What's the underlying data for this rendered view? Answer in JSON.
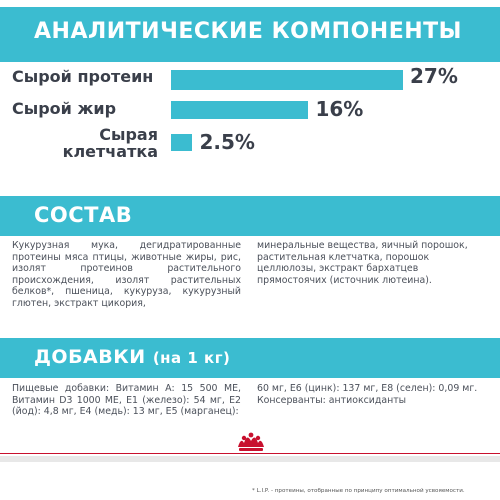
{
  "analytics": {
    "title": "АНАЛИТИЧЕСКИЕ КОМПОНЕНТЫ",
    "rows": [
      {
        "label_lines": [
          "Сырой протеин"
        ],
        "value": "27%",
        "percent": 27
      },
      {
        "label_lines": [
          "Сырой жир"
        ],
        "value": "16%",
        "percent": 16
      },
      {
        "label_lines": [
          "Сырая",
          "клетчатка"
        ],
        "value": "2.5%",
        "percent": 2.5
      }
    ]
  },
  "composition": {
    "title": "СОСТАВ",
    "col1": "Кукурузная мука, дегидратированные протеины мяса птицы, животные жиры, рис, изолят протеинов растительного происхождения, изолят растительных белков*, пшеница, кукуруза, кукурузный глютен, экстракт цикория,",
    "col2": "минеральные вещества, яичный порошок, растительная клетчатка, порошок целлюлозы, экстракт бархатцев прямостоячих (источник лютеина)."
  },
  "additives": {
    "title": "ДОБАВКИ",
    "title_suffix": "(на 1 кг)",
    "col1": "Пищевые добавки: Витамин А: 15 500 МЕ, Витамин D3 1000 МЕ, Е1 (железо): 54 мг, Е2 (йод): 4,8 мг, Е4 (медь): 13 мг, Е5 (марганец):",
    "col2": "60 мг, Е6 (цинк): 137 мг, Е8 (селен): 0,09 мг. Консерванты: антиоксиданты"
  },
  "footer": {
    "note": "* L.I.P. - протеины, отобранные по принципу оптимальной усвояемости."
  },
  "colors": {
    "accent": "#3bbcd0",
    "text": "#3a3f4a",
    "brand_red": "#c8102e"
  },
  "icons": {
    "logo": "royal-canin-crown-icon"
  }
}
